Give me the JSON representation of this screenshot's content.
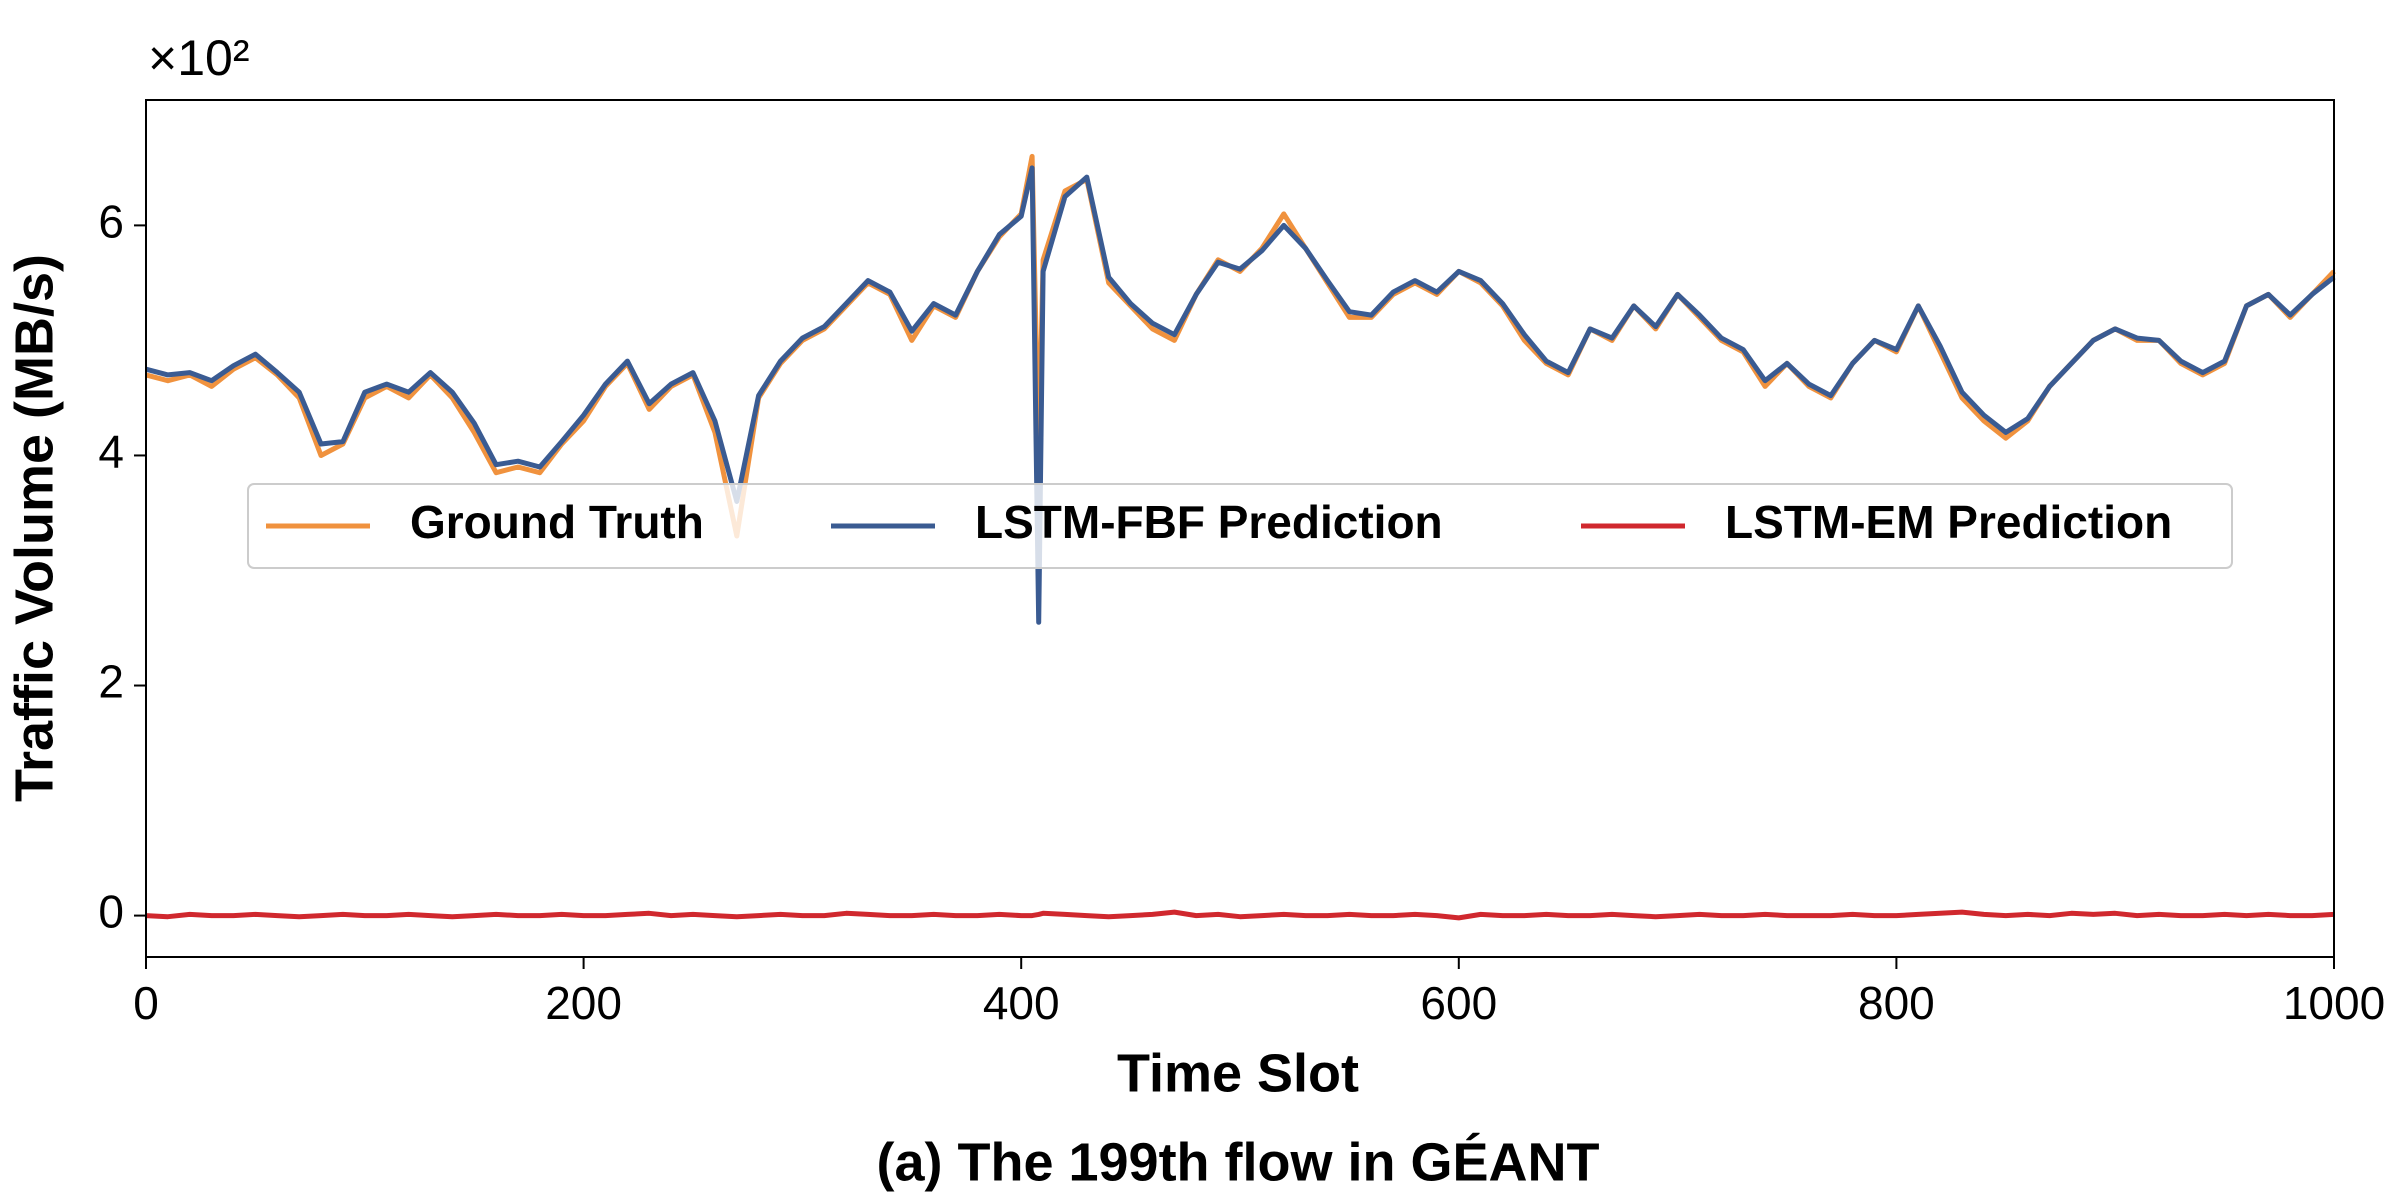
{
  "chart_data": {
    "type": "line",
    "title": "(a) The 199th flow in GÉANT",
    "x_label": "Time Slot",
    "y_label": "Traffic Volume (MB/s)",
    "y_multiplier": "×10²",
    "xlim": [
      0,
      1000
    ],
    "xticks": [
      0,
      200,
      400,
      600,
      800,
      1000
    ],
    "ylim": [
      -0.36,
      7.09
    ],
    "yticks": [
      0,
      2,
      4,
      6
    ],
    "legend_loc": "center",
    "x": [
      0,
      10,
      20,
      30,
      40,
      50,
      60,
      70,
      80,
      90,
      100,
      110,
      120,
      130,
      140,
      150,
      160,
      170,
      180,
      190,
      200,
      210,
      220,
      230,
      240,
      250,
      260,
      270,
      280,
      290,
      300,
      310,
      320,
      330,
      340,
      350,
      360,
      370,
      380,
      390,
      400,
      405,
      408,
      410,
      420,
      430,
      440,
      450,
      460,
      470,
      480,
      490,
      500,
      510,
      520,
      530,
      540,
      550,
      560,
      570,
      580,
      590,
      600,
      610,
      620,
      630,
      640,
      650,
      660,
      670,
      680,
      690,
      700,
      710,
      720,
      730,
      740,
      750,
      760,
      770,
      780,
      790,
      800,
      810,
      820,
      830,
      840,
      850,
      860,
      870,
      880,
      890,
      900,
      910,
      920,
      930,
      940,
      950,
      960,
      970,
      980,
      990,
      1000
    ],
    "series": [
      {
        "name": "Ground Truth",
        "color": "#f0923e",
        "values": [
          4.7,
          4.65,
          4.7,
          4.6,
          4.75,
          4.85,
          4.7,
          4.5,
          4.0,
          4.1,
          4.5,
          4.6,
          4.5,
          4.7,
          4.5,
          4.2,
          3.85,
          3.9,
          3.85,
          4.1,
          4.3,
          4.6,
          4.8,
          4.4,
          4.6,
          4.7,
          4.2,
          3.3,
          4.5,
          4.8,
          5.0,
          5.1,
          5.3,
          5.5,
          5.4,
          5.0,
          5.3,
          5.2,
          5.6,
          5.9,
          6.1,
          6.6,
          4.0,
          5.7,
          6.3,
          6.4,
          5.5,
          5.3,
          5.1,
          5.0,
          5.4,
          5.7,
          5.6,
          5.8,
          6.1,
          5.8,
          5.5,
          5.2,
          5.2,
          5.4,
          5.5,
          5.4,
          5.6,
          5.5,
          5.3,
          5.0,
          4.8,
          4.7,
          5.1,
          5.0,
          5.3,
          5.1,
          5.4,
          5.2,
          5.0,
          4.9,
          4.6,
          4.8,
          4.6,
          4.5,
          4.8,
          5.0,
          4.9,
          5.3,
          4.9,
          4.5,
          4.3,
          4.15,
          4.3,
          4.6,
          4.8,
          5.0,
          5.1,
          5.0,
          5.0,
          4.8,
          4.7,
          4.8,
          5.3,
          5.4,
          5.2,
          5.4,
          5.6
        ]
      },
      {
        "name": "LSTM-FBF Prediction",
        "color": "#3a5b92",
        "values": [
          4.75,
          4.7,
          4.72,
          4.65,
          4.78,
          4.88,
          4.72,
          4.55,
          4.1,
          4.12,
          4.55,
          4.62,
          4.55,
          4.72,
          4.55,
          4.28,
          3.92,
          3.95,
          3.9,
          4.12,
          4.35,
          4.62,
          4.82,
          4.45,
          4.62,
          4.72,
          4.3,
          3.6,
          4.52,
          4.82,
          5.02,
          5.12,
          5.32,
          5.52,
          5.42,
          5.08,
          5.32,
          5.22,
          5.6,
          5.92,
          6.08,
          6.5,
          2.55,
          5.6,
          6.25,
          6.42,
          5.55,
          5.32,
          5.15,
          5.05,
          5.4,
          5.68,
          5.62,
          5.78,
          6.0,
          5.8,
          5.52,
          5.25,
          5.22,
          5.42,
          5.52,
          5.42,
          5.6,
          5.52,
          5.32,
          5.05,
          4.82,
          4.72,
          5.1,
          5.02,
          5.3,
          5.12,
          5.4,
          5.22,
          5.02,
          4.92,
          4.65,
          4.8,
          4.62,
          4.52,
          4.8,
          5.0,
          4.92,
          5.3,
          4.95,
          4.55,
          4.35,
          4.2,
          4.32,
          4.6,
          4.8,
          5.0,
          5.1,
          5.02,
          5.0,
          4.82,
          4.72,
          4.82,
          5.3,
          5.4,
          5.22,
          5.4,
          5.55
        ]
      },
      {
        "name": "LSTM-EM Prediction",
        "color": "#d0282e",
        "values": [
          0.0,
          -0.01,
          0.01,
          0.0,
          0.0,
          0.01,
          0.0,
          -0.01,
          0.0,
          0.01,
          0.0,
          0.0,
          0.01,
          0.0,
          -0.01,
          0.0,
          0.01,
          0.0,
          0.0,
          0.01,
          0.0,
          0.0,
          0.01,
          0.02,
          0.0,
          0.01,
          0.0,
          -0.01,
          0.0,
          0.01,
          0.0,
          0.0,
          0.02,
          0.01,
          0.0,
          0.0,
          0.01,
          0.0,
          0.0,
          0.01,
          0.0,
          0.0,
          0.01,
          0.02,
          0.01,
          0.0,
          -0.01,
          0.0,
          0.01,
          0.03,
          0.0,
          0.01,
          -0.01,
          0.0,
          0.01,
          0.0,
          0.0,
          0.01,
          0.0,
          0.0,
          0.01,
          0.0,
          -0.02,
          0.01,
          0.0,
          0.0,
          0.01,
          0.0,
          0.0,
          0.01,
          0.0,
          -0.01,
          0.0,
          0.01,
          0.0,
          0.0,
          0.01,
          0.0,
          0.0,
          0.0,
          0.01,
          0.0,
          0.0,
          0.01,
          0.02,
          0.03,
          0.01,
          0.0,
          0.01,
          0.0,
          0.02,
          0.01,
          0.02,
          0.0,
          0.01,
          0.0,
          0.0,
          0.01,
          0.0,
          0.01,
          0.0,
          0.0,
          0.01
        ]
      }
    ]
  }
}
